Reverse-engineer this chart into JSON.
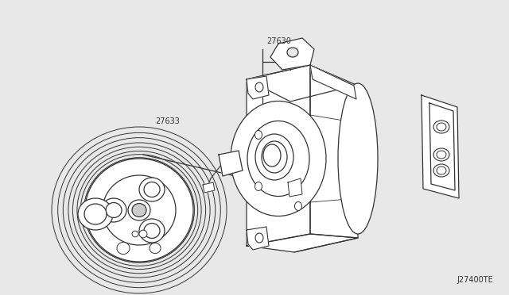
{
  "bg_color": "#ffffff",
  "line_color": "#333333",
  "label_27630": "27630",
  "label_27633": "27633",
  "watermark": "J27400TE",
  "lw": 0.9,
  "fig_bg": "#e8e8e8"
}
